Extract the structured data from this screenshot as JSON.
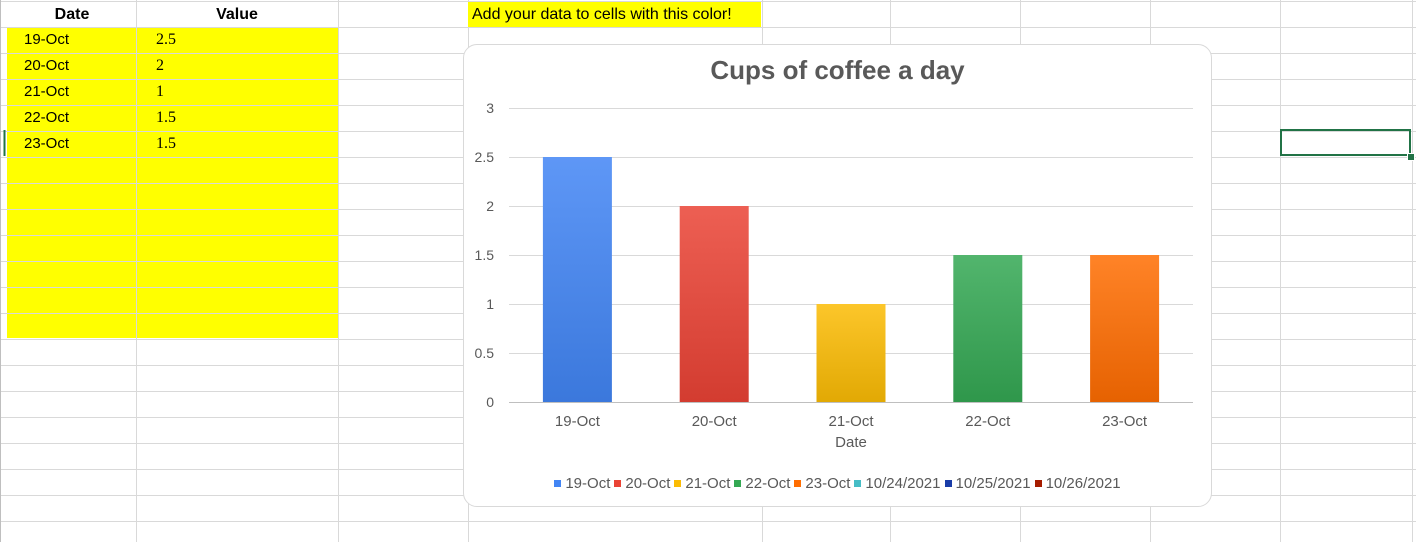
{
  "table": {
    "headers": {
      "date": "Date",
      "value": "Value"
    },
    "rows": [
      {
        "date": "19-Oct",
        "value": "2.5"
      },
      {
        "date": "20-Oct",
        "value": "2"
      },
      {
        "date": "21-Oct",
        "value": "1"
      },
      {
        "date": "22-Oct",
        "value": "1.5"
      },
      {
        "date": "23-Oct",
        "value": "1.5"
      }
    ]
  },
  "note": "Add your data to cells with this color!",
  "colors": {
    "input_fill": "#ffff00",
    "selection": "#217346",
    "gridline": "#d9d9d9"
  },
  "chart_data": {
    "type": "bar",
    "title": "Cups of coffee a day",
    "xlabel": "Date",
    "ylabel": "",
    "categories": [
      "19-Oct",
      "20-Oct",
      "21-Oct",
      "22-Oct",
      "23-Oct"
    ],
    "values": [
      2.5,
      2,
      1,
      1.5,
      1.5
    ],
    "ylim": [
      0,
      3
    ],
    "yticks": [
      "0",
      "0.5",
      "1",
      "1.5",
      "2",
      "2.5",
      "3"
    ],
    "bar_colors": [
      "#4285f4",
      "#ea4335",
      "#fbbc04",
      "#34a853",
      "#ff6d01"
    ],
    "grid": true,
    "legend_position": "bottom",
    "legend": [
      {
        "label": "19-Oct",
        "color": "#4285f4"
      },
      {
        "label": "20-Oct",
        "color": "#ea4335"
      },
      {
        "label": "21-Oct",
        "color": "#fbbc04"
      },
      {
        "label": "22-Oct",
        "color": "#34a853"
      },
      {
        "label": "23-Oct",
        "color": "#ff6d01"
      },
      {
        "label": "10/24/2021",
        "color": "#46bdc6"
      },
      {
        "label": "10/25/2021",
        "color": "#1a3da8"
      },
      {
        "label": "10/26/2021",
        "color": "#a61c00"
      }
    ]
  }
}
